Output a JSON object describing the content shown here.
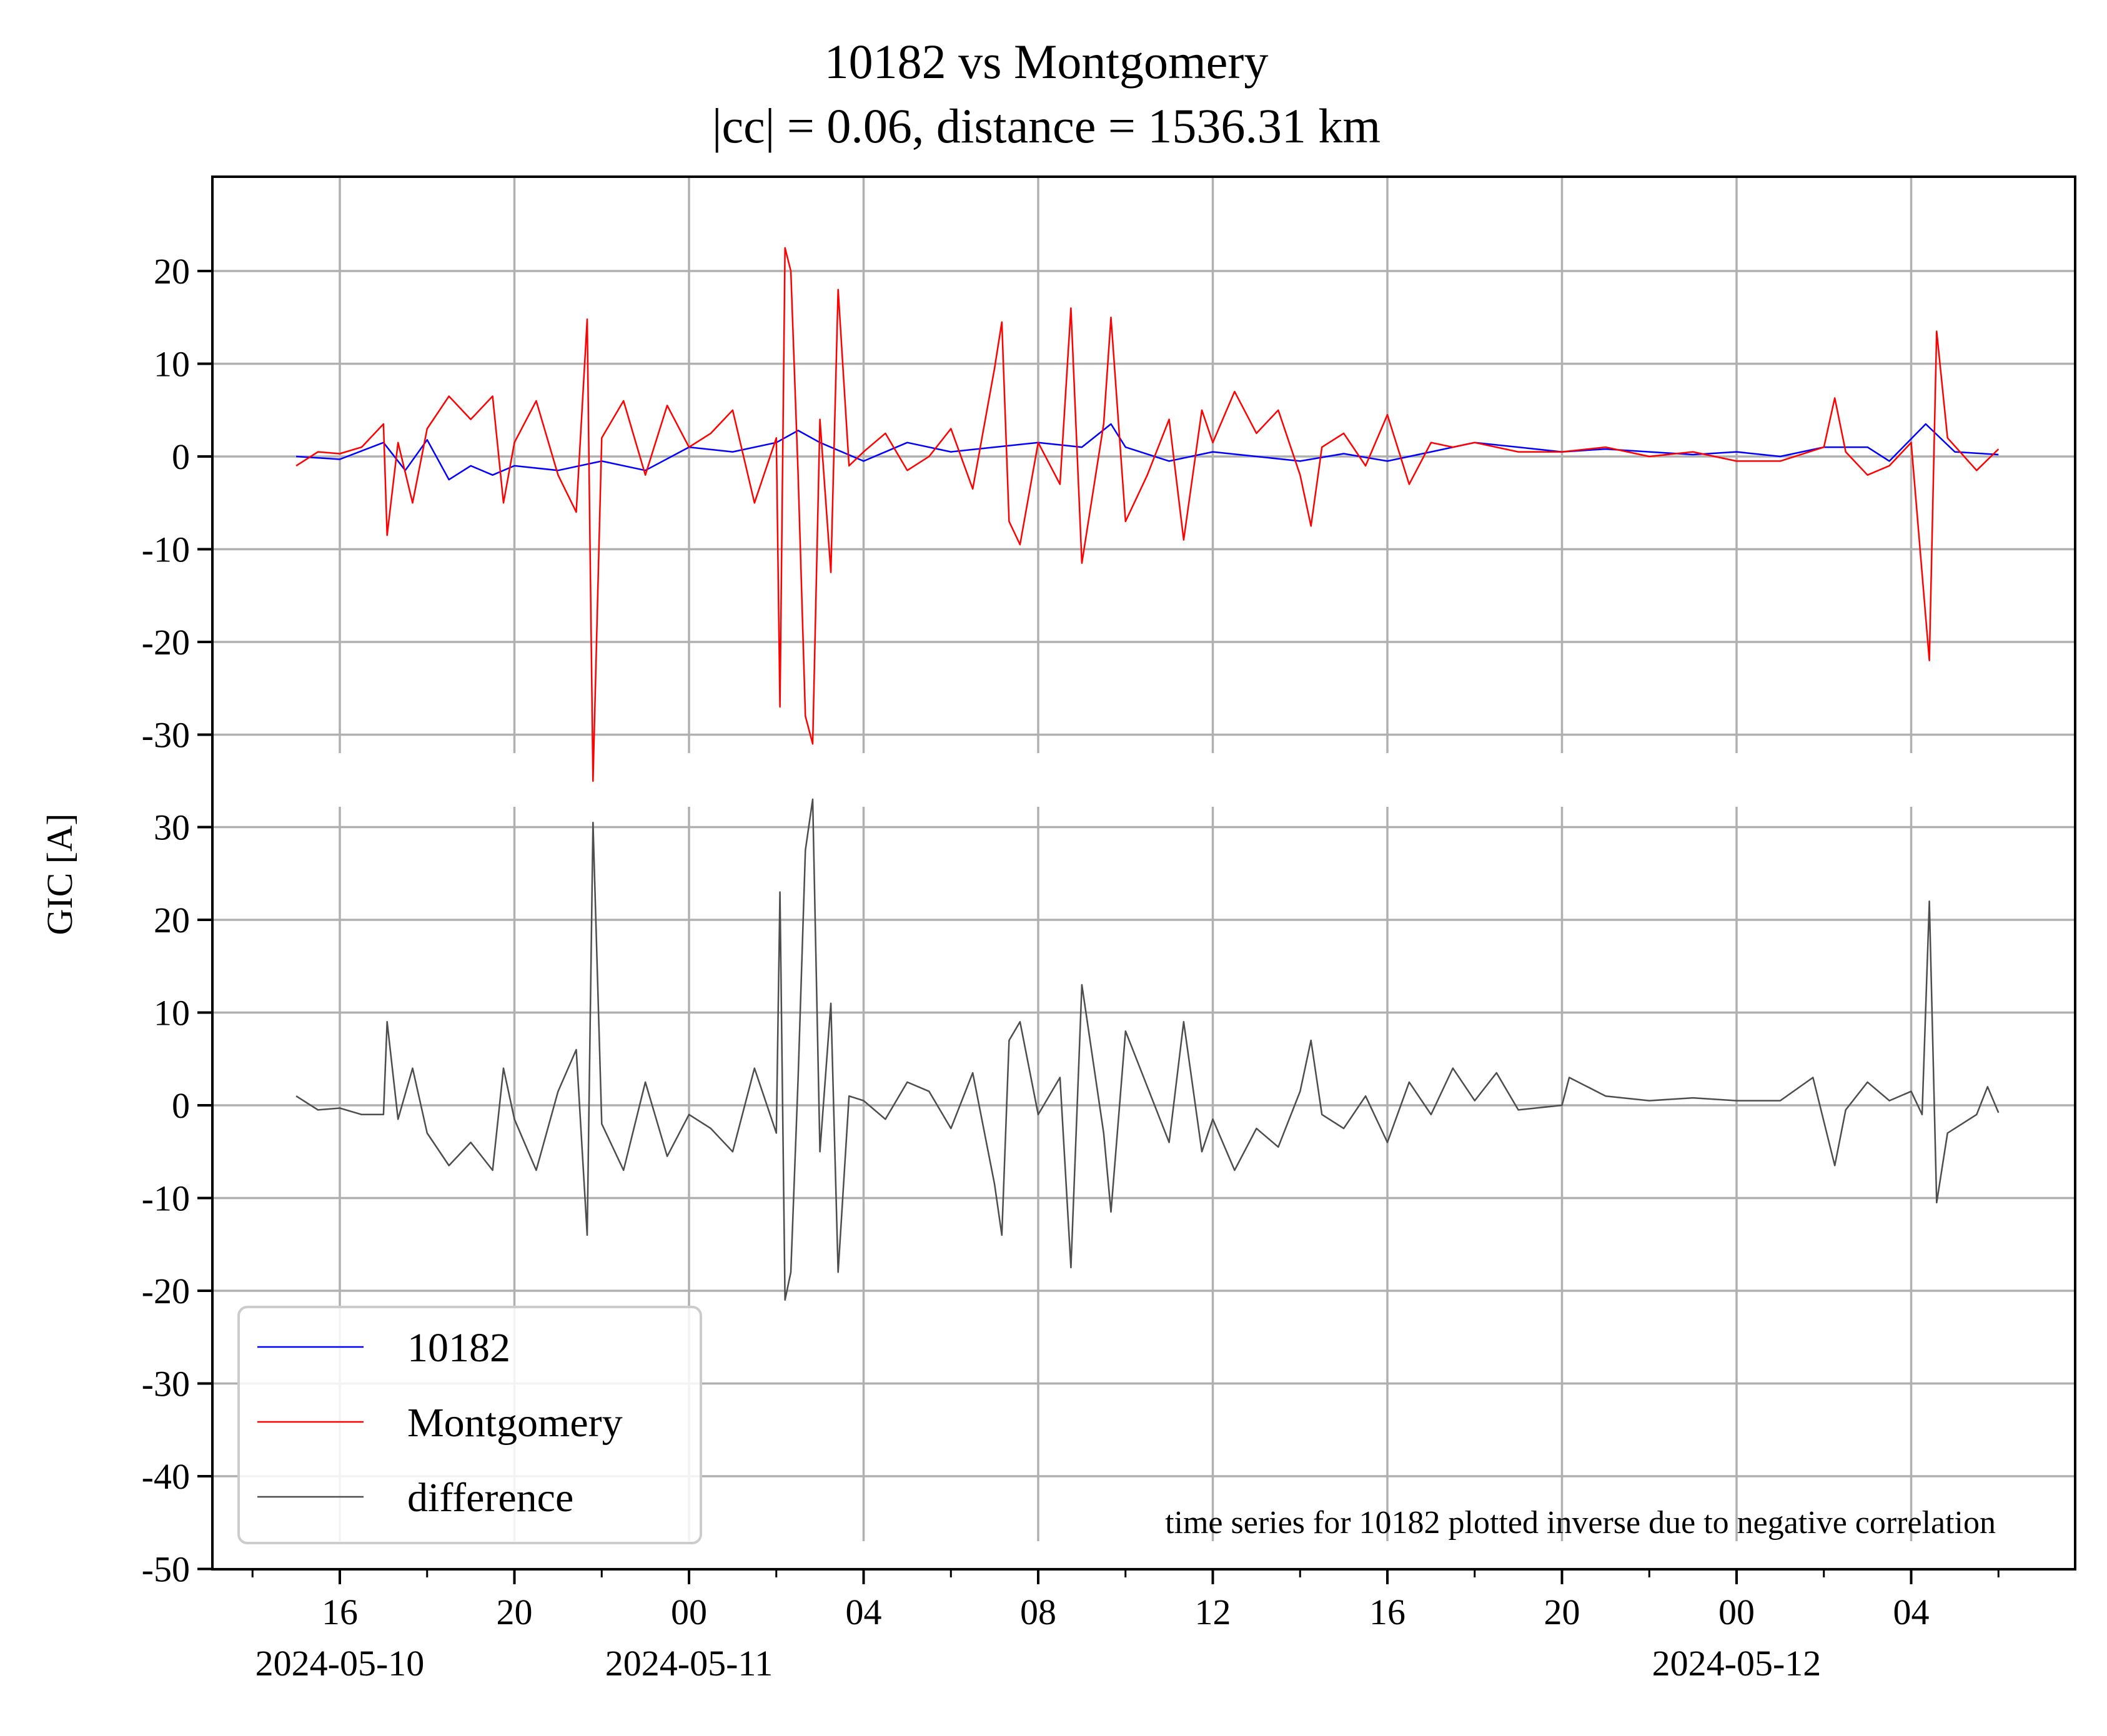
{
  "chart_data": {
    "type": "line",
    "title": "10182 vs Montgomery",
    "subtitle": "|cc| = 0.06, distance = 1536.31 km",
    "ylabel": "GIC [A]",
    "annotation": "time series for 10182 plotted inverse due to negative correlation",
    "legend_position": "lower-left",
    "grid": true,
    "x_range": [
      "2024-05-10 14:30",
      "2024-05-12 07:40"
    ],
    "x_ticks": [
      {
        "time": "2024-05-10 16:00",
        "label": "16",
        "date_label": "2024-05-10"
      },
      {
        "time": "2024-05-10 20:00",
        "label": "20",
        "date_label": ""
      },
      {
        "time": "2024-05-11 00:00",
        "label": "00",
        "date_label": "2024-05-11"
      },
      {
        "time": "2024-05-11 04:00",
        "label": "04",
        "date_label": ""
      },
      {
        "time": "2024-05-11 08:00",
        "label": "08",
        "date_label": ""
      },
      {
        "time": "2024-05-11 12:00",
        "label": "12",
        "date_label": ""
      },
      {
        "time": "2024-05-11 16:00",
        "label": "16",
        "date_label": ""
      },
      {
        "time": "2024-05-11 20:00",
        "label": "20",
        "date_label": ""
      },
      {
        "time": "2024-05-12 00:00",
        "label": "00",
        "date_label": "2024-05-12"
      },
      {
        "time": "2024-05-12 04:00",
        "label": "04",
        "date_label": ""
      }
    ],
    "panels": [
      {
        "name": "top",
        "ylim": [
          -30,
          30
        ],
        "yticks": [
          "20",
          "10",
          "0",
          "-10",
          "-20",
          "-30"
        ],
        "ytick_values": [
          20,
          10,
          0,
          -10,
          -20,
          -30
        ]
      },
      {
        "name": "bottom",
        "ylim": [
          -50,
          32
        ],
        "yticks": [
          "30",
          "20",
          "10",
          "0",
          "-10",
          "-20",
          "-30",
          "-40",
          "-50"
        ],
        "ytick_values": [
          30,
          20,
          10,
          0,
          -10,
          -20,
          -30,
          -40,
          -50
        ]
      }
    ],
    "series": [
      {
        "name": "10182",
        "panel": "top",
        "color": "#0000ff",
        "points": [
          [
            "2024-05-10 15:00",
            0.0
          ],
          [
            "2024-05-10 16:00",
            -0.3
          ],
          [
            "2024-05-10 17:00",
            1.5
          ],
          [
            "2024-05-10 17:30",
            -1.5
          ],
          [
            "2024-05-10 18:00",
            1.8
          ],
          [
            "2024-05-10 18:30",
            -2.5
          ],
          [
            "2024-05-10 19:00",
            -1.0
          ],
          [
            "2024-05-10 19:30",
            -2.0
          ],
          [
            "2024-05-10 20:00",
            -1.0
          ],
          [
            "2024-05-10 21:00",
            -1.5
          ],
          [
            "2024-05-10 22:00",
            -0.5
          ],
          [
            "2024-05-10 23:00",
            -1.5
          ],
          [
            "2024-05-11 00:00",
            1.0
          ],
          [
            "2024-05-11 01:00",
            0.5
          ],
          [
            "2024-05-11 02:00",
            1.5
          ],
          [
            "2024-05-11 02:30",
            2.8
          ],
          [
            "2024-05-11 03:00",
            1.5
          ],
          [
            "2024-05-11 04:00",
            -0.5
          ],
          [
            "2024-05-11 05:00",
            1.5
          ],
          [
            "2024-05-11 06:00",
            0.5
          ],
          [
            "2024-05-11 07:00",
            1.0
          ],
          [
            "2024-05-11 08:00",
            1.5
          ],
          [
            "2024-05-11 09:00",
            1.0
          ],
          [
            "2024-05-11 09:40",
            3.5
          ],
          [
            "2024-05-11 10:00",
            1.0
          ],
          [
            "2024-05-11 11:00",
            -0.5
          ],
          [
            "2024-05-11 12:00",
            0.5
          ],
          [
            "2024-05-11 13:00",
            0.0
          ],
          [
            "2024-05-11 14:00",
            -0.5
          ],
          [
            "2024-05-11 15:00",
            0.3
          ],
          [
            "2024-05-11 16:00",
            -0.5
          ],
          [
            "2024-05-11 17:00",
            0.5
          ],
          [
            "2024-05-11 18:00",
            1.5
          ],
          [
            "2024-05-11 19:00",
            1.0
          ],
          [
            "2024-05-11 20:00",
            0.5
          ],
          [
            "2024-05-11 21:00",
            0.8
          ],
          [
            "2024-05-11 22:00",
            0.5
          ],
          [
            "2024-05-11 23:00",
            0.2
          ],
          [
            "2024-05-12 00:00",
            0.5
          ],
          [
            "2024-05-12 01:00",
            0.0
          ],
          [
            "2024-05-12 02:00",
            1.0
          ],
          [
            "2024-05-12 03:00",
            1.0
          ],
          [
            "2024-05-12 03:30",
            -0.5
          ],
          [
            "2024-05-12 04:20",
            3.5
          ],
          [
            "2024-05-12 05:00",
            0.5
          ],
          [
            "2024-05-12 06:00",
            0.2
          ]
        ]
      },
      {
        "name": "Montgomery",
        "panel": "top",
        "color": "#ff0000",
        "points": [
          [
            "2024-05-10 15:00",
            -1.0
          ],
          [
            "2024-05-10 15:30",
            0.5
          ],
          [
            "2024-05-10 16:00",
            0.3
          ],
          [
            "2024-05-10 16:30",
            1.0
          ],
          [
            "2024-05-10 17:00",
            3.5
          ],
          [
            "2024-05-10 17:05",
            -8.5
          ],
          [
            "2024-05-10 17:20",
            1.5
          ],
          [
            "2024-05-10 17:40",
            -5.0
          ],
          [
            "2024-05-10 18:00",
            3.0
          ],
          [
            "2024-05-10 18:30",
            6.5
          ],
          [
            "2024-05-10 19:00",
            4.0
          ],
          [
            "2024-05-10 19:30",
            6.5
          ],
          [
            "2024-05-10 19:45",
            -5.0
          ],
          [
            "2024-05-10 20:00",
            1.5
          ],
          [
            "2024-05-10 20:30",
            6.0
          ],
          [
            "2024-05-10 21:00",
            -2.0
          ],
          [
            "2024-05-10 21:25",
            -6.0
          ],
          [
            "2024-05-10 21:40",
            14.8
          ],
          [
            "2024-05-10 21:48",
            -35.0
          ],
          [
            "2024-05-10 22:00",
            2.0
          ],
          [
            "2024-05-10 22:30",
            6.0
          ],
          [
            "2024-05-10 23:00",
            -2.0
          ],
          [
            "2024-05-10 23:30",
            5.5
          ],
          [
            "2024-05-11 00:00",
            1.0
          ],
          [
            "2024-05-11 00:30",
            2.5
          ],
          [
            "2024-05-11 01:00",
            5.0
          ],
          [
            "2024-05-11 01:30",
            -5.0
          ],
          [
            "2024-05-11 02:00",
            2.0
          ],
          [
            "2024-05-11 02:05",
            -27.0
          ],
          [
            "2024-05-11 02:12",
            22.5
          ],
          [
            "2024-05-11 02:20",
            20.0
          ],
          [
            "2024-05-11 02:30",
            -2.0
          ],
          [
            "2024-05-11 02:40",
            -28.0
          ],
          [
            "2024-05-11 02:50",
            -31.0
          ],
          [
            "2024-05-11 03:00",
            4.0
          ],
          [
            "2024-05-11 03:15",
            -12.5
          ],
          [
            "2024-05-11 03:25",
            18.0
          ],
          [
            "2024-05-11 03:40",
            -1.0
          ],
          [
            "2024-05-11 04:00",
            0.5
          ],
          [
            "2024-05-11 04:30",
            2.5
          ],
          [
            "2024-05-11 05:00",
            -1.5
          ],
          [
            "2024-05-11 05:30",
            0.0
          ],
          [
            "2024-05-11 06:00",
            3.0
          ],
          [
            "2024-05-11 06:30",
            -3.5
          ],
          [
            "2024-05-11 07:00",
            9.5
          ],
          [
            "2024-05-11 07:10",
            14.5
          ],
          [
            "2024-05-11 07:20",
            -7.0
          ],
          [
            "2024-05-11 07:35",
            -9.5
          ],
          [
            "2024-05-11 08:00",
            1.5
          ],
          [
            "2024-05-11 08:30",
            -3.0
          ],
          [
            "2024-05-11 08:45",
            16.0
          ],
          [
            "2024-05-11 09:00",
            -11.5
          ],
          [
            "2024-05-11 09:30",
            3.5
          ],
          [
            "2024-05-11 09:40",
            15.0
          ],
          [
            "2024-05-11 10:00",
            -7.0
          ],
          [
            "2024-05-11 10:30",
            -2.0
          ],
          [
            "2024-05-11 11:00",
            4.0
          ],
          [
            "2024-05-11 11:20",
            -9.0
          ],
          [
            "2024-05-11 11:45",
            5.0
          ],
          [
            "2024-05-11 12:00",
            1.5
          ],
          [
            "2024-05-11 12:30",
            7.0
          ],
          [
            "2024-05-11 13:00",
            2.5
          ],
          [
            "2024-05-11 13:30",
            5.0
          ],
          [
            "2024-05-11 14:00",
            -2.0
          ],
          [
            "2024-05-11 14:15",
            -7.5
          ],
          [
            "2024-05-11 14:30",
            1.0
          ],
          [
            "2024-05-11 15:00",
            2.5
          ],
          [
            "2024-05-11 15:30",
            -1.0
          ],
          [
            "2024-05-11 16:00",
            4.5
          ],
          [
            "2024-05-11 16:30",
            -3.0
          ],
          [
            "2024-05-11 17:00",
            1.5
          ],
          [
            "2024-05-11 17:30",
            1.0
          ],
          [
            "2024-05-11 18:00",
            1.5
          ],
          [
            "2024-05-11 19:00",
            0.5
          ],
          [
            "2024-05-11 20:00",
            0.5
          ],
          [
            "2024-05-11 21:00",
            1.0
          ],
          [
            "2024-05-11 22:00",
            0.0
          ],
          [
            "2024-05-11 23:00",
            0.5
          ],
          [
            "2024-05-12 00:00",
            -0.5
          ],
          [
            "2024-05-12 01:00",
            -0.5
          ],
          [
            "2024-05-12 02:00",
            1.0
          ],
          [
            "2024-05-12 02:15",
            6.3
          ],
          [
            "2024-05-12 02:30",
            0.5
          ],
          [
            "2024-05-12 03:00",
            -2.0
          ],
          [
            "2024-05-12 03:30",
            -1.0
          ],
          [
            "2024-05-12 04:00",
            1.5
          ],
          [
            "2024-05-12 04:25",
            -22.0
          ],
          [
            "2024-05-12 04:35",
            13.5
          ],
          [
            "2024-05-12 04:50",
            2.0
          ],
          [
            "2024-05-12 05:30",
            -1.5
          ],
          [
            "2024-05-12 06:00",
            0.8
          ]
        ]
      },
      {
        "name": "difference",
        "panel": "bottom",
        "color": "#4d4d4d",
        "points": [
          [
            "2024-05-10 15:00",
            1.0
          ],
          [
            "2024-05-10 15:30",
            -0.5
          ],
          [
            "2024-05-10 16:00",
            -0.3
          ],
          [
            "2024-05-10 16:30",
            -1.0
          ],
          [
            "2024-05-10 17:00",
            -1.0
          ],
          [
            "2024-05-10 17:05",
            9.0
          ],
          [
            "2024-05-10 17:20",
            -1.5
          ],
          [
            "2024-05-10 17:40",
            4.0
          ],
          [
            "2024-05-10 18:00",
            -3.0
          ],
          [
            "2024-05-10 18:30",
            -6.5
          ],
          [
            "2024-05-10 19:00",
            -4.0
          ],
          [
            "2024-05-10 19:30",
            -7.0
          ],
          [
            "2024-05-10 19:45",
            4.0
          ],
          [
            "2024-05-10 20:00",
            -1.5
          ],
          [
            "2024-05-10 20:30",
            -7.0
          ],
          [
            "2024-05-10 21:00",
            1.5
          ],
          [
            "2024-05-10 21:25",
            6.0
          ],
          [
            "2024-05-10 21:40",
            -14.0
          ],
          [
            "2024-05-10 21:48",
            30.5
          ],
          [
            "2024-05-10 22:00",
            -2.0
          ],
          [
            "2024-05-10 22:30",
            -7.0
          ],
          [
            "2024-05-10 23:00",
            2.5
          ],
          [
            "2024-05-10 23:30",
            -5.5
          ],
          [
            "2024-05-11 00:00",
            -1.0
          ],
          [
            "2024-05-11 00:30",
            -2.5
          ],
          [
            "2024-05-11 01:00",
            -5.0
          ],
          [
            "2024-05-11 01:30",
            4.0
          ],
          [
            "2024-05-11 02:00",
            -3.0
          ],
          [
            "2024-05-11 02:05",
            23.0
          ],
          [
            "2024-05-11 02:12",
            -21.0
          ],
          [
            "2024-05-11 02:20",
            -18.0
          ],
          [
            "2024-05-11 02:30",
            3.0
          ],
          [
            "2024-05-11 02:40",
            27.5
          ],
          [
            "2024-05-11 02:50",
            33.0
          ],
          [
            "2024-05-11 03:00",
            -5.0
          ],
          [
            "2024-05-11 03:15",
            11.0
          ],
          [
            "2024-05-11 03:25",
            -18.0
          ],
          [
            "2024-05-11 03:40",
            1.0
          ],
          [
            "2024-05-11 04:00",
            0.5
          ],
          [
            "2024-05-11 04:30",
            -1.5
          ],
          [
            "2024-05-11 05:00",
            2.5
          ],
          [
            "2024-05-11 05:30",
            1.5
          ],
          [
            "2024-05-11 06:00",
            -2.5
          ],
          [
            "2024-05-11 06:30",
            3.5
          ],
          [
            "2024-05-11 07:00",
            -8.5
          ],
          [
            "2024-05-11 07:10",
            -14.0
          ],
          [
            "2024-05-11 07:20",
            7.0
          ],
          [
            "2024-05-11 07:35",
            9.0
          ],
          [
            "2024-05-11 08:00",
            -1.0
          ],
          [
            "2024-05-11 08:30",
            3.0
          ],
          [
            "2024-05-11 08:45",
            -17.5
          ],
          [
            "2024-05-11 09:00",
            13.0
          ],
          [
            "2024-05-11 09:30",
            -3.0
          ],
          [
            "2024-05-11 09:40",
            -11.5
          ],
          [
            "2024-05-11 10:00",
            8.0
          ],
          [
            "2024-05-11 10:30",
            2.0
          ],
          [
            "2024-05-11 11:00",
            -4.0
          ],
          [
            "2024-05-11 11:20",
            9.0
          ],
          [
            "2024-05-11 11:45",
            -5.0
          ],
          [
            "2024-05-11 12:00",
            -1.5
          ],
          [
            "2024-05-11 12:30",
            -7.0
          ],
          [
            "2024-05-11 13:00",
            -2.5
          ],
          [
            "2024-05-11 13:30",
            -4.5
          ],
          [
            "2024-05-11 14:00",
            1.5
          ],
          [
            "2024-05-11 14:15",
            7.0
          ],
          [
            "2024-05-11 14:30",
            -1.0
          ],
          [
            "2024-05-11 15:00",
            -2.5
          ],
          [
            "2024-05-11 15:30",
            1.0
          ],
          [
            "2024-05-11 16:00",
            -4.0
          ],
          [
            "2024-05-11 16:30",
            2.5
          ],
          [
            "2024-05-11 17:00",
            -1.0
          ],
          [
            "2024-05-11 17:30",
            4.0
          ],
          [
            "2024-05-11 18:00",
            0.5
          ],
          [
            "2024-05-11 18:30",
            3.5
          ],
          [
            "2024-05-11 19:00",
            -0.5
          ],
          [
            "2024-05-11 20:00",
            0.0
          ],
          [
            "2024-05-11 20:10",
            3.0
          ],
          [
            "2024-05-11 21:00",
            1.0
          ],
          [
            "2024-05-11 22:00",
            0.5
          ],
          [
            "2024-05-11 23:00",
            0.8
          ],
          [
            "2024-05-12 00:00",
            0.5
          ],
          [
            "2024-05-12 01:00",
            0.5
          ],
          [
            "2024-05-12 01:45",
            3.0
          ],
          [
            "2024-05-12 02:15",
            -6.5
          ],
          [
            "2024-05-12 02:30",
            -0.5
          ],
          [
            "2024-05-12 03:00",
            2.5
          ],
          [
            "2024-05-12 03:30",
            0.5
          ],
          [
            "2024-05-12 04:00",
            1.5
          ],
          [
            "2024-05-12 04:15",
            -1.0
          ],
          [
            "2024-05-12 04:25",
            22.0
          ],
          [
            "2024-05-12 04:35",
            -10.5
          ],
          [
            "2024-05-12 04:50",
            -3.0
          ],
          [
            "2024-05-12 05:30",
            -1.0
          ],
          [
            "2024-05-12 05:45",
            2.0
          ],
          [
            "2024-05-12 06:00",
            -0.8
          ]
        ]
      }
    ]
  }
}
